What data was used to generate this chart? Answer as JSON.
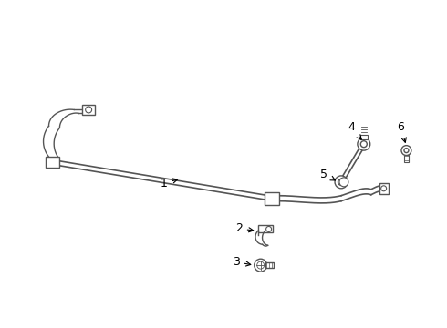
{
  "bg_color": "#ffffff",
  "line_color": "#555555",
  "label_color": "#000000",
  "figsize": [
    4.9,
    3.6
  ],
  "dpi": 100
}
